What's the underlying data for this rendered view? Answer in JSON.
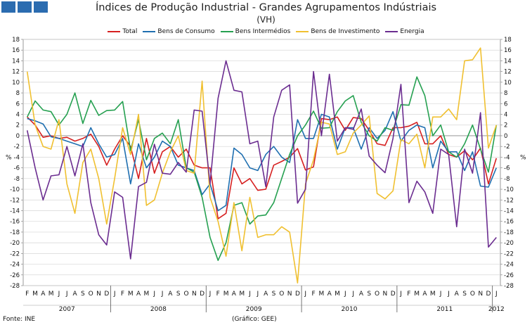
{
  "title": "Índices de Produção Industrial - Grandes Agrupamentos Indústriais",
  "subtitle": "(VH)",
  "footer_source": "Fonte: INE",
  "footer_graph": "(Gráfico: GEE)",
  "chart_data": {
    "type": "line",
    "title": "Índices de Produção Industrial - Grandes Agrupamentos Indústriais",
    "ylabel_left": "%",
    "ylabel_right": "%",
    "ylim": [
      -28,
      18
    ],
    "yticks": [
      18,
      16,
      14,
      12,
      10,
      8,
      6,
      4,
      2,
      0,
      -2,
      -4,
      -6,
      -8,
      -10,
      -12,
      -14,
      -16,
      -18,
      -20,
      -22,
      -24,
      -26,
      -28
    ],
    "grid": "horizontal",
    "legend_position": "top",
    "x": [
      "F",
      "M",
      "A",
      "M",
      "J",
      "J",
      "A",
      "S",
      "O",
      "N",
      "D",
      "J",
      "F",
      "M",
      "A",
      "M",
      "J",
      "J",
      "A",
      "S",
      "O",
      "N",
      "D",
      "J",
      "F",
      "M",
      "A",
      "M",
      "J",
      "J",
      "A",
      "S",
      "O",
      "N",
      "D",
      "J",
      "F",
      "M",
      "A",
      "M",
      "J",
      "J",
      "A",
      "S",
      "O",
      "N",
      "D",
      "J",
      "F",
      "M",
      "A",
      "M",
      "J",
      "J",
      "A",
      "S",
      "O",
      "N",
      "D",
      "J"
    ],
    "years": [
      {
        "label": "2007",
        "start": 0,
        "end": 10
      },
      {
        "label": "2008",
        "start": 11,
        "end": 22
      },
      {
        "label": "2009",
        "start": 23,
        "end": 34
      },
      {
        "label": "2010",
        "start": 35,
        "end": 46
      },
      {
        "label": "2011",
        "start": 47,
        "end": 58
      },
      {
        "label": "2012",
        "start": 59,
        "end": 59
      }
    ],
    "series": [
      {
        "name": "Total",
        "color": "#d62020",
        "values": [
          3.5,
          2,
          -0.3,
          0,
          -0.5,
          -0.3,
          -1,
          -0.5,
          0.3,
          -2,
          -5.5,
          -2.5,
          0,
          -2,
          -8,
          -0.5,
          -7,
          -3,
          -2,
          -4,
          -2.5,
          -5.5,
          -6,
          -6,
          -15.5,
          -14.5,
          -6,
          -9,
          -8,
          -10.2,
          -10,
          -5.5,
          -4.8,
          -4,
          -2.4,
          -6.4,
          -5.8,
          3.2,
          3,
          3.5,
          1,
          3.4,
          3.2,
          1,
          -1.5,
          -1.8,
          1.5,
          1.5,
          1.8,
          2.5,
          -1.5,
          -1.5,
          0,
          -3.5,
          -4,
          -2.8,
          -4.5,
          -2.3,
          -9,
          -4.2
        ]
      },
      {
        "name": "Bens de Consumo",
        "color": "#1f6fb0",
        "values": [
          3.2,
          2.8,
          2.2,
          -0.2,
          -0.5,
          -1,
          -1.5,
          -2,
          1.5,
          -1.5,
          -4,
          -3.5,
          -0.5,
          -9,
          -1.5,
          -6,
          -4,
          -1,
          -2,
          -5.5,
          -6,
          -6.5,
          -11,
          -9,
          -14,
          -13,
          -2.3,
          -3.5,
          -6,
          -6.5,
          -3.5,
          -2,
          -4,
          -5,
          3,
          -0.5,
          -0.5,
          4,
          3.5,
          -2.5,
          1.5,
          1.5,
          -2.5,
          1.5,
          -0.5,
          1,
          4.5,
          -1,
          1,
          2,
          1.5,
          -6,
          -1,
          -3,
          -3,
          -6.5,
          -3,
          -9.4,
          -9.6,
          -6
        ]
      },
      {
        "name": "Bens Intermédios",
        "color": "#25a050",
        "values": [
          3.5,
          6.5,
          4.8,
          4.5,
          2,
          4,
          8,
          2.3,
          6.6,
          3.8,
          4.7,
          4.8,
          6.4,
          -2.8,
          3,
          -4.5,
          -0.5,
          0.5,
          -1.5,
          3,
          -6,
          -6.8,
          -11.5,
          -19,
          -23.3,
          -20,
          -13,
          -12.5,
          -16.5,
          -15,
          -14.8,
          -12.5,
          -8,
          -3.5,
          0,
          2,
          4.6,
          1.4,
          1.5,
          4.5,
          6.5,
          7.5,
          2.5,
          0,
          -1,
          1.5,
          1,
          5.8,
          5.7,
          11,
          7.5,
          0,
          2,
          -3,
          -4,
          -1.5,
          2,
          -2.5,
          -6.8,
          2
        ]
      },
      {
        "name": "Bens de Investimento",
        "color": "#f0c030",
        "values": [
          12,
          2,
          -2,
          -2.5,
          3,
          -9,
          -14.5,
          -5,
          -2.5,
          -8,
          -16.5,
          -8,
          1.5,
          -3.5,
          4,
          -13,
          -12,
          -7,
          -3,
          0,
          -6.5,
          -7,
          10.2,
          -11.5,
          -16,
          -22.5,
          -12.5,
          -21.5,
          -11.5,
          -19,
          -18.5,
          -18.5,
          -17,
          -18,
          -27.5,
          -9,
          -4.5,
          2.5,
          2.2,
          -3.5,
          -3,
          0.5,
          2,
          3.7,
          -10.8,
          -11.8,
          -10.3,
          -0.7,
          -1.5,
          0.3,
          -6,
          3.5,
          3.5,
          5,
          3,
          14,
          14.2,
          16.4,
          -2.3,
          2
        ]
      },
      {
        "name": "Energia",
        "color": "#6b2d90",
        "values": [
          1,
          -6,
          -12,
          -7.5,
          -7.3,
          -2,
          -7.5,
          -1.5,
          -12.5,
          -18.5,
          -20.4,
          -10.5,
          -11.5,
          -23,
          -9.5,
          -8.7,
          -1.6,
          -7,
          -7.2,
          -5,
          -6.8,
          4.8,
          4.6,
          -9,
          7,
          14,
          8.5,
          8.2,
          -1.5,
          -1,
          -9.5,
          3.5,
          8.5,
          9.5,
          -12.6,
          -10,
          12,
          0,
          11.5,
          -1,
          1.5,
          1.2,
          5,
          -3.8,
          -5.5,
          -6.9,
          -0.5,
          9.6,
          -12.5,
          -8.5,
          -10.5,
          -14.5,
          -2.5,
          -3.5,
          -17,
          -2.5,
          -7,
          4.3,
          -20.8,
          -19
        ]
      }
    ]
  }
}
